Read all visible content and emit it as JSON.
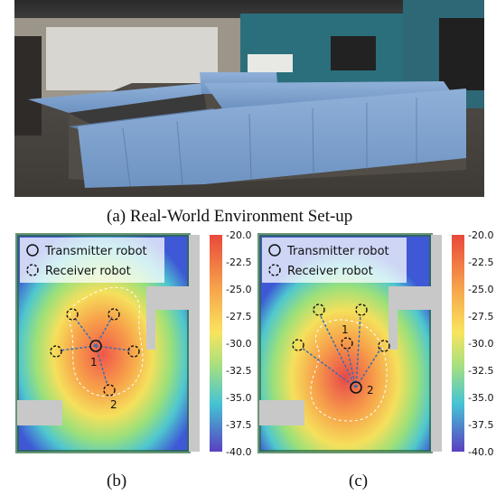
{
  "figure": {
    "caption_a": "(a) Real-World Environment Set-up",
    "caption_b": "(b)",
    "caption_c": "(c)"
  },
  "panels": [
    {
      "id": "b",
      "legend": {
        "transmitter": "Transmitter robot",
        "receiver": "Receiver robot"
      },
      "node_labels": [
        "1",
        "2"
      ],
      "colorbar": {
        "ticks": [
          "-20.0",
          "-22.5",
          "-25.0",
          "-27.5",
          "-30.0",
          "-32.5",
          "-35.0",
          "-37.5",
          "-40.0"
        ],
        "min": -40.0,
        "max": -20.0
      }
    },
    {
      "id": "c",
      "legend": {
        "transmitter": "Transmitter robot",
        "receiver": "Receiver robot"
      },
      "node_labels": [
        "1",
        "2"
      ],
      "colorbar": {
        "ticks": [
          "-20.0",
          "-22.5",
          "-25.0",
          "-27.5",
          "-30.0",
          "-32.5",
          "-35.0",
          "-37.5",
          "-40.0"
        ],
        "min": -40.0,
        "max": -20.0
      }
    }
  ],
  "colors": {
    "arrow": "#3a6fb0",
    "contour": "#ffffff",
    "obstacle": "#c8c8c8"
  }
}
